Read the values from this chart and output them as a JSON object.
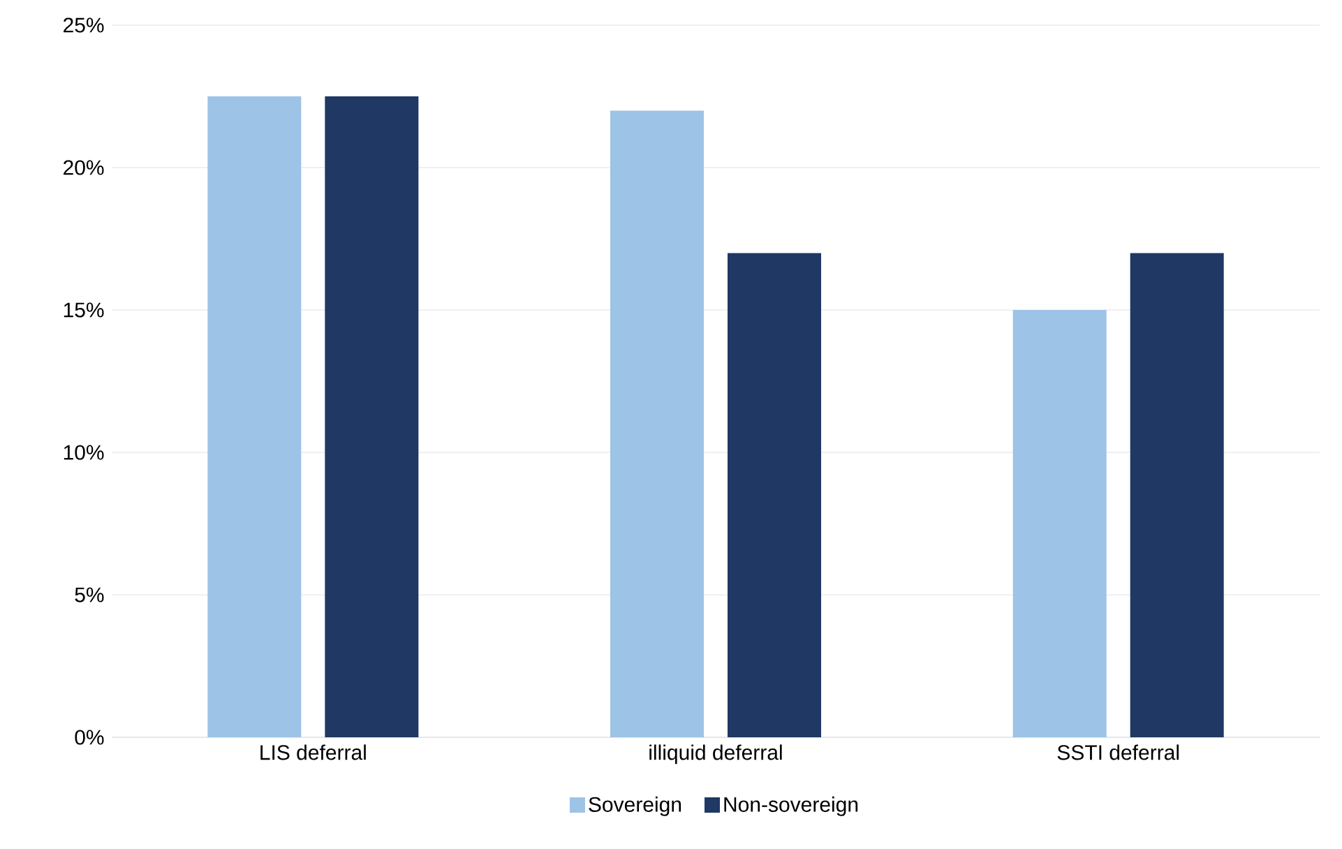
{
  "chart_data": {
    "type": "bar",
    "categories": [
      "LIS deferral",
      "illiquid deferral",
      "SSTI deferral"
    ],
    "series": [
      {
        "name": "Sovereign",
        "color": "#9dc3e6",
        "values": [
          22.5,
          22,
          15
        ]
      },
      {
        "name": "Non-sovereign",
        "color": "#1f3864",
        "values": [
          22.5,
          17,
          17
        ]
      }
    ],
    "ylim": [
      0,
      25
    ],
    "yticks": [
      {
        "value": 0,
        "label": "0%"
      },
      {
        "value": 5,
        "label": "5%"
      },
      {
        "value": 10,
        "label": "10%"
      },
      {
        "value": 15,
        "label": "15%"
      },
      {
        "value": 20,
        "label": "20%"
      },
      {
        "value": 25,
        "label": "25%"
      }
    ],
    "grid": "y",
    "legend": "bottom"
  }
}
